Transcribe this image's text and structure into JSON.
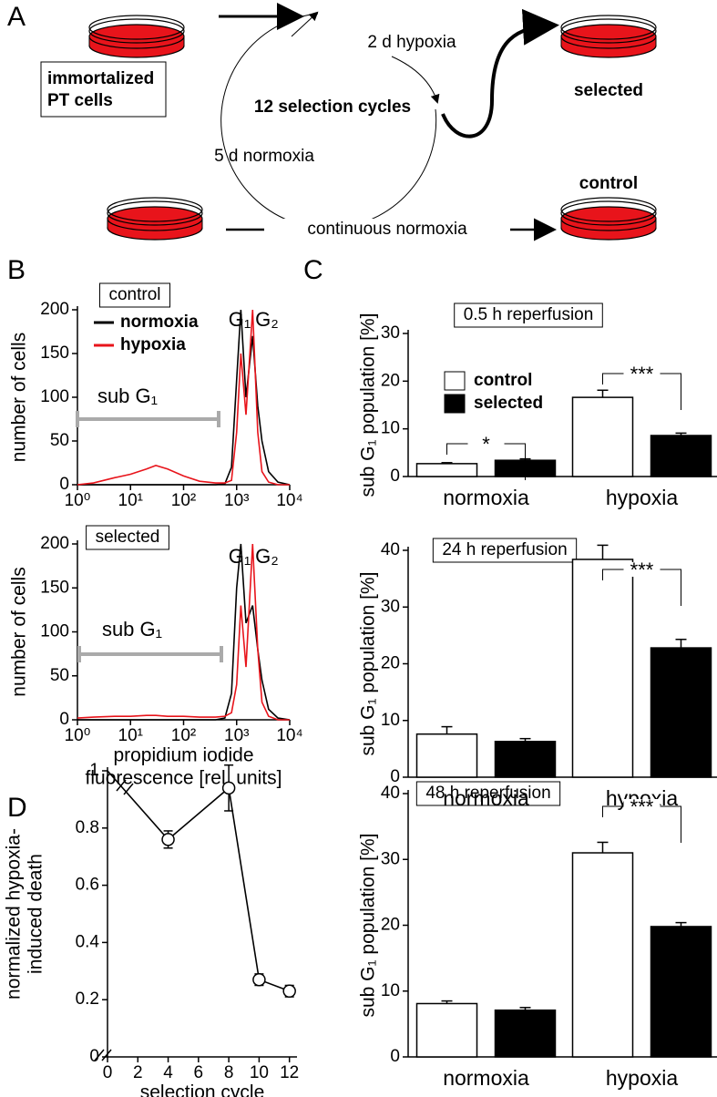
{
  "panels": [
    "A",
    "B",
    "C",
    "D"
  ],
  "diagram": {
    "start": [
      "immortalized",
      "PT cells"
    ],
    "hypoxia_step": "2 d hypoxia",
    "cycles": "12 selection cycles",
    "normoxia_step": "5 d normoxia",
    "selected": "selected",
    "control": "control",
    "continuous": "continuous normoxia"
  },
  "chart_data": [
    {
      "type": "line",
      "title": "control",
      "xlog": true,
      "xlim": [
        1,
        10000
      ],
      "xticks": [
        {
          "value": 1,
          "label": "10⁰"
        },
        {
          "value": 10,
          "label": "10¹"
        },
        {
          "value": 100,
          "label": "10²"
        },
        {
          "value": 1000,
          "label": "10³"
        },
        {
          "value": 10000,
          "label": "10⁴"
        }
      ],
      "ylim": [
        0,
        200
      ],
      "yticks": [
        0,
        50,
        100,
        150,
        200
      ],
      "ylabel": "number of cells",
      "legend": true,
      "annotations": [
        "G₁",
        "G₂",
        "sub G₁"
      ],
      "x": [
        1,
        2,
        5,
        10,
        20,
        30,
        50,
        100,
        200,
        400,
        600,
        800,
        1000,
        1200,
        1500,
        2000,
        2500,
        3000,
        4000,
        6000,
        10000
      ],
      "series": [
        {
          "name": "normoxia",
          "color": "#000000",
          "values": [
            0,
            0,
            0,
            0,
            0,
            0,
            0,
            0,
            0,
            0,
            1,
            20,
            120,
            200,
            100,
            170,
            90,
            50,
            15,
            3,
            0
          ]
        },
        {
          "name": "hypoxia",
          "color": "#e8141b",
          "values": [
            0,
            2,
            8,
            12,
            18,
            22,
            18,
            10,
            4,
            2,
            2,
            5,
            60,
            150,
            80,
            200,
            60,
            15,
            3,
            0,
            0
          ]
        }
      ]
    },
    {
      "type": "line",
      "title": "selected",
      "xlog": true,
      "xlim": [
        1,
        10000
      ],
      "xticks": [
        {
          "value": 1,
          "label": "10⁰"
        },
        {
          "value": 10,
          "label": "10¹"
        },
        {
          "value": 100,
          "label": "10²"
        },
        {
          "value": 1000,
          "label": "10³"
        },
        {
          "value": 10000,
          "label": "10⁴"
        }
      ],
      "ylim": [
        0,
        200
      ],
      "yticks": [
        0,
        50,
        100,
        150,
        200
      ],
      "ylabel": "number of cells",
      "legend": false,
      "xlabel": [
        "propidium iodide",
        "fluorescence  [rel. units]"
      ],
      "annotations": [
        "G₁",
        "G₂",
        "sub G₁"
      ],
      "x": [
        1,
        2,
        5,
        10,
        20,
        30,
        50,
        100,
        200,
        400,
        600,
        800,
        1000,
        1200,
        1500,
        2000,
        2500,
        3000,
        4000,
        6000,
        10000
      ],
      "series": [
        {
          "color": "#000000",
          "values": [
            0,
            0,
            0,
            0,
            0,
            0,
            0,
            0,
            0,
            0,
            2,
            30,
            150,
            200,
            110,
            130,
            80,
            45,
            12,
            2,
            0
          ]
        },
        {
          "color": "#e8141b",
          "values": [
            2,
            3,
            4,
            4,
            5,
            5,
            4,
            4,
            3,
            3,
            4,
            8,
            40,
            130,
            60,
            200,
            80,
            20,
            4,
            0,
            0
          ]
        }
      ]
    },
    {
      "type": "bar",
      "title": "0.5  h reperfusion",
      "categories": [
        "normoxia",
        "hypoxia"
      ],
      "ylim": [
        0,
        30
      ],
      "yticks": [
        0,
        10,
        20,
        30
      ],
      "ylabel": "sub G₁ population [%]",
      "legend": true,
      "annotations": [
        "*",
        "***"
      ],
      "series": [
        {
          "name": "control",
          "color": "#ffffff",
          "values": [
            2.7,
            16.6
          ],
          "errors": [
            0.2,
            1.5
          ]
        },
        {
          "name": "selected",
          "color": "#000000",
          "values": [
            3.4,
            8.6
          ],
          "errors": [
            0.3,
            0.5
          ]
        }
      ]
    },
    {
      "type": "bar",
      "title": "24  h reperfusion",
      "categories": [
        "normoxia",
        "hypoxia"
      ],
      "ylim": [
        0,
        40
      ],
      "yticks": [
        0,
        10,
        20,
        30,
        40
      ],
      "ylabel": "sub G₁ population [%]",
      "legend": false,
      "annotations": [
        "***"
      ],
      "series": [
        {
          "color": "#ffffff",
          "values": [
            7.6,
            38.4
          ],
          "errors": [
            1.3,
            2.5
          ]
        },
        {
          "color": "#000000",
          "values": [
            6.3,
            22.8
          ],
          "errors": [
            0.5,
            1.5
          ]
        }
      ]
    },
    {
      "type": "bar",
      "title": "48  h reperfusion",
      "categories": [
        "normoxia",
        "hypoxia"
      ],
      "ylim": [
        0,
        40
      ],
      "yticks": [
        0,
        10,
        20,
        30,
        40
      ],
      "ylabel": "sub G₁ population [%]",
      "legend": false,
      "annotations": [
        "***"
      ],
      "series": [
        {
          "color": "#ffffff",
          "values": [
            8.1,
            31
          ],
          "errors": [
            0.4,
            1.6
          ]
        },
        {
          "color": "#000000",
          "values": [
            7.1,
            19.8
          ],
          "errors": [
            0.4,
            0.6
          ]
        }
      ]
    },
    {
      "type": "line",
      "xlim": [
        0,
        12.5
      ],
      "xticks": [
        0,
        2,
        4,
        6,
        8,
        10,
        12
      ],
      "ylim": [
        0,
        1
      ],
      "yticks": [
        0,
        0.2,
        0.4,
        0.6,
        0.8,
        1
      ],
      "xlabel": "selection cycle",
      "ylabel": [
        "normalized hypoxia-",
        "induced death"
      ],
      "x": [
        0,
        4,
        8,
        10,
        12
      ],
      "series": [
        {
          "color": "#000000",
          "values": [
            1,
            0.76,
            0.94,
            0.27,
            0.23
          ],
          "errors": [
            null,
            0.03,
            0.08,
            0.02,
            0.02
          ]
        }
      ]
    }
  ]
}
